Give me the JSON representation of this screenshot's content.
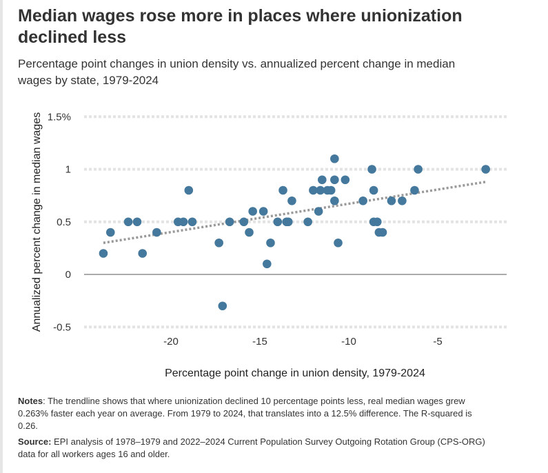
{
  "title": "Median wages rose more in places where unionization declined less",
  "subtitle": "Percentage point changes in union density vs. annualized percent change in median wages by state, 1979-2024",
  "notes_label": "Notes",
  "notes_text": ": The trendline shows that where unionization declined 10 percentage points less, real median wages grew 0.263% faster each year on average. From 1979 to 2024, that translates into a 12.5% difference. The R-squared is 0.26.",
  "source_label": "Source:",
  "source_text": " EPI analysis of 1978–1979 and 2022–2024 Current Population Survey Outgoing Rotation Group (CPS-ORG) data for all workers ages 16 and older.",
  "colors": {
    "point": "#44789c",
    "trend": "#999999",
    "grid": "#e3e3e3",
    "zero": "#555555"
  },
  "chart_data": {
    "type": "scatter",
    "xlabel": "Percentage point change in union density, 1979-2024",
    "ylabel": "Annualized percent change in median wages",
    "xlim": [
      -24.5,
      -1.5
    ],
    "ylim": [
      -0.5,
      1.5
    ],
    "xticks": [
      {
        "v": -20,
        "label": "-20"
      },
      {
        "v": -15,
        "label": "-15"
      },
      {
        "v": -10,
        "label": "-10"
      },
      {
        "v": -5,
        "label": "-5"
      }
    ],
    "yticks": [
      {
        "v": 1.5,
        "label": "1.5%"
      },
      {
        "v": 1,
        "label": "1"
      },
      {
        "v": 0.5,
        "label": "0.5"
      },
      {
        "v": 0,
        "label": "0"
      },
      {
        "v": -0.5,
        "label": "-0.5"
      }
    ],
    "trendline": [
      [
        -23.8,
        0.3
      ],
      [
        -2.3,
        0.88
      ]
    ],
    "points": [
      [
        -23.8,
        0.2
      ],
      [
        -23.4,
        0.4
      ],
      [
        -22.4,
        0.5
      ],
      [
        -21.9,
        0.5
      ],
      [
        -21.6,
        0.2
      ],
      [
        -20.8,
        0.4
      ],
      [
        -19.6,
        0.5
      ],
      [
        -19.3,
        0.5
      ],
      [
        -19.0,
        0.8
      ],
      [
        -18.8,
        0.5
      ],
      [
        -17.3,
        0.3
      ],
      [
        -17.1,
        -0.3
      ],
      [
        -16.7,
        0.5
      ],
      [
        -15.9,
        0.5
      ],
      [
        -15.6,
        0.4
      ],
      [
        -15.4,
        0.6
      ],
      [
        -14.8,
        0.6
      ],
      [
        -14.6,
        0.1
      ],
      [
        -14.4,
        0.3
      ],
      [
        -14.0,
        0.5
      ],
      [
        -13.7,
        0.8
      ],
      [
        -13.5,
        0.5
      ],
      [
        -13.4,
        0.5
      ],
      [
        -13.2,
        0.7
      ],
      [
        -12.3,
        0.5
      ],
      [
        -12.0,
        0.8
      ],
      [
        -11.7,
        0.6
      ],
      [
        -11.6,
        0.8
      ],
      [
        -11.5,
        0.9
      ],
      [
        -11.2,
        0.8
      ],
      [
        -11.0,
        0.8
      ],
      [
        -10.8,
        1.1
      ],
      [
        -10.8,
        0.9
      ],
      [
        -10.8,
        0.7
      ],
      [
        -10.6,
        0.3
      ],
      [
        -10.2,
        0.9
      ],
      [
        -9.2,
        0.7
      ],
      [
        -8.7,
        1.0
      ],
      [
        -8.6,
        0.8
      ],
      [
        -8.6,
        0.5
      ],
      [
        -8.4,
        0.5
      ],
      [
        -8.3,
        0.4
      ],
      [
        -8.1,
        0.4
      ],
      [
        -7.6,
        0.7
      ],
      [
        -7.0,
        0.7
      ],
      [
        -6.3,
        0.8
      ],
      [
        -6.1,
        1.0
      ],
      [
        -2.3,
        1.0
      ]
    ]
  }
}
